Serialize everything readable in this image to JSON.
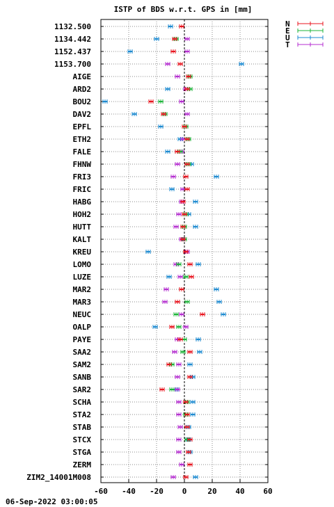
{
  "chart_data": {
    "type": "scatter",
    "title": "ISTP of BDS w.r.t. GPS in [mm]",
    "footer": "06-Sep-2022 03:00:05",
    "xlim": [
      -60,
      60
    ],
    "x_ticks": [
      "-60",
      "-40",
      "-20",
      "0",
      "20",
      "40",
      "60"
    ],
    "grid": true,
    "legend_position": "top-right",
    "series": [
      {
        "name": "N",
        "color": "#e8151f"
      },
      {
        "name": "E",
        "color": "#1db53a"
      },
      {
        "name": "U",
        "color": "#1e8bd1"
      },
      {
        "name": "T",
        "color": "#b52fd0"
      }
    ],
    "stations": [
      {
        "label": "1132.500",
        "N": -2,
        "E": -2,
        "U": -10,
        "T": -2
      },
      {
        "label": "1134.442",
        "N": -7,
        "E": -6,
        "U": -20,
        "T": 2
      },
      {
        "label": "1152.437",
        "N": -8,
        "E": -8,
        "U": -39,
        "T": 2
      },
      {
        "label": "1153.700",
        "N": -3,
        "E": -3,
        "U": 41,
        "T": -12
      },
      {
        "label": "AIGE",
        "N": 3,
        "E": 4,
        "U": -5,
        "T": -5
      },
      {
        "label": "ARD2",
        "N": 2,
        "E": 4,
        "U": -12,
        "T": 1
      },
      {
        "label": "BOU2",
        "N": -24,
        "E": -17,
        "U": -57,
        "T": -2
      },
      {
        "label": "DAV2",
        "N": -15,
        "E": -14,
        "U": -36,
        "T": 2
      },
      {
        "label": "EPFL",
        "N": 0,
        "E": 1,
        "U": -17,
        "T": 0
      },
      {
        "label": "ETH2",
        "N": 2,
        "E": 3,
        "U": -3,
        "T": -1
      },
      {
        "label": "FALE",
        "N": -5,
        "E": -3,
        "U": -12,
        "T": -2
      },
      {
        "label": "FHNW",
        "N": 2,
        "E": 3,
        "U": 5,
        "T": -5
      },
      {
        "label": "FRI3",
        "N": 1,
        "E": 1,
        "U": 23,
        "T": -8
      },
      {
        "label": "FRIC",
        "N": 2,
        "E": 2,
        "U": -9,
        "T": -1
      },
      {
        "label": "HABG",
        "N": -1,
        "E": -1,
        "U": 8,
        "T": -2
      },
      {
        "label": "HOH2",
        "N": 0,
        "E": 1,
        "U": 3,
        "T": -4
      },
      {
        "label": "HUTT",
        "N": -1,
        "E": 0,
        "U": 8,
        "T": -6
      },
      {
        "label": "KALT",
        "N": -1,
        "E": 0,
        "U": 0,
        "T": -2
      },
      {
        "label": "KREU",
        "N": 1,
        "E": 1,
        "U": -26,
        "T": 2
      },
      {
        "label": "LOMO",
        "N": 4,
        "E": -4,
        "U": 10,
        "T": -6
      },
      {
        "label": "LUZE",
        "N": 5,
        "E": 1,
        "U": -11,
        "T": -3
      },
      {
        "label": "MAR2",
        "N": -2,
        "E": -2,
        "U": 23,
        "T": -13
      },
      {
        "label": "MAR3",
        "N": -5,
        "E": 2,
        "U": 25,
        "T": -14
      },
      {
        "label": "NEUC",
        "N": 13,
        "E": -6,
        "U": 28,
        "T": -2
      },
      {
        "label": "OALP",
        "N": -9,
        "E": -4,
        "U": -21,
        "T": 1
      },
      {
        "label": "PAYE",
        "N": -3,
        "E": 0,
        "U": 10,
        "T": -5
      },
      {
        "label": "SAA2",
        "N": 4,
        "E": -1,
        "U": 11,
        "T": -7
      },
      {
        "label": "SAM2",
        "N": -11,
        "E": -9,
        "U": 4,
        "T": -4
      },
      {
        "label": "SANB",
        "N": 4,
        "E": 4,
        "U": 6,
        "T": -5
      },
      {
        "label": "SAR2",
        "N": -16,
        "E": -9,
        "U": -6,
        "T": -5
      },
      {
        "label": "SCHA",
        "N": 1,
        "E": 2,
        "U": 6,
        "T": -4
      },
      {
        "label": "STA2",
        "N": 2,
        "E": 1,
        "U": 6,
        "T": -4
      },
      {
        "label": "STAB",
        "N": 2,
        "E": 2,
        "U": 3,
        "T": -3
      },
      {
        "label": "STCX",
        "N": 4,
        "E": 2,
        "U": 3,
        "T": -4
      },
      {
        "label": "STGA",
        "N": 3,
        "E": 3,
        "U": 4,
        "T": -4
      },
      {
        "label": "ZERM",
        "N": 4,
        "E": 4,
        "U": -2,
        "T": -2
      },
      {
        "label": "ZIM2_14001M008",
        "N": 1,
        "E": 1,
        "U": 8,
        "T": -8
      }
    ]
  }
}
